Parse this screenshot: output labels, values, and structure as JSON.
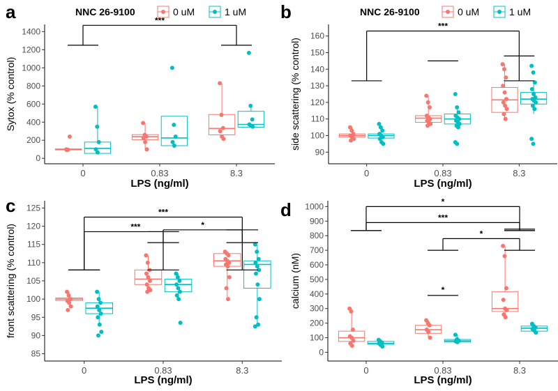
{
  "colors": {
    "control": "#F8766D",
    "treated": "#00BFC4",
    "axis": "#000000",
    "tick_text": "#4d4d4d"
  },
  "legends": [
    {
      "title": "NNC 26-9100",
      "items": [
        "0 uM",
        "1 uM"
      ]
    },
    {
      "title": "NNC 26-9100",
      "items": [
        "0 uM",
        "1 uM"
      ]
    }
  ],
  "chart_data": [
    {
      "panel": "a",
      "type": "box",
      "xlabel": "LPS (ng/ml)",
      "ylabel": "Sytox (% control)",
      "categories": [
        "0",
        "0.83",
        "8.3"
      ],
      "ylim": [
        -60,
        1480
      ],
      "yticks": [
        0,
        200,
        400,
        600,
        800,
        1000,
        1200,
        1400
      ],
      "series": [
        {
          "name": "0 uM",
          "boxes": [
            {
              "q1": 93,
              "med": 100,
              "q3": 104,
              "lo": 90,
              "hi": 110
            },
            {
              "q1": 205,
              "med": 240,
              "q3": 262,
              "lo": 100,
              "hi": 390
            },
            {
              "q1": 260,
              "med": 330,
              "q3": 485,
              "lo": 210,
              "hi": 830
            }
          ],
          "points": [
            [
              100,
              95,
              240,
              92
            ],
            [
              390,
              260,
              240,
              225,
              180,
              100
            ],
            [
              830,
              480,
              335,
              300,
              240,
              215
            ]
          ]
        },
        {
          "name": "1 uM",
          "boxes": [
            {
              "q1": 55,
              "med": 110,
              "q3": 180,
              "lo": 45,
              "hi": 570
            },
            {
              "q1": 140,
              "med": 225,
              "q3": 465,
              "lo": 140,
              "hi": 465
            },
            {
              "q1": 345,
              "med": 375,
              "q3": 520,
              "lo": 345,
              "hi": 570
            }
          ],
          "points": [
            [
              570,
              350,
              180,
              100,
              65
            ],
            [
              1000,
              370,
              240,
              180,
              140
            ],
            [
              1165,
              580,
              430,
              375,
              360,
              350
            ]
          ]
        }
      ],
      "annotations": [
        {
          "label": "***",
          "style": "bridge",
          "x1": 0.8,
          "x2": 1.2,
          "x3": 2.8,
          "x4": 3.2,
          "y_low": 1250,
          "y_high": 1470,
          "label_pos": "top"
        }
      ]
    },
    {
      "panel": "b",
      "type": "box",
      "xlabel": "LPS (ng/ml)",
      "ylabel": "side scattering (% control)",
      "categories": [
        "0",
        "0.83",
        "8.3"
      ],
      "ylim": [
        83,
        167
      ],
      "yticks": [
        90,
        100,
        110,
        120,
        130,
        140,
        150,
        160
      ],
      "series": [
        {
          "name": "0 uM",
          "boxes": [
            {
              "q1": 99,
              "med": 100,
              "q3": 101,
              "lo": 97,
              "hi": 105
            },
            {
              "q1": 108,
              "med": 110.5,
              "q3": 112,
              "lo": 106,
              "hi": 124
            },
            {
              "q1": 114,
              "med": 121.5,
              "q3": 129,
              "lo": 110,
              "hi": 143
            }
          ],
          "points": [
            [
              105,
              103,
              101,
              100,
              99,
              98,
              97
            ],
            [
              124,
              120,
              117,
              112,
              111,
              110,
              109,
              108,
              107,
              106
            ],
            [
              143,
              140,
              135,
              130,
              126,
              122,
              120,
              118,
              116,
              113,
              110
            ]
          ]
        },
        {
          "name": "1 uM",
          "boxes": [
            {
              "q1": 98.5,
              "med": 100,
              "q3": 101,
              "lo": 96,
              "hi": 104
            },
            {
              "q1": 107,
              "med": 110,
              "q3": 113,
              "lo": 104,
              "hi": 117
            },
            {
              "q1": 119,
              "med": 122,
              "q3": 126,
              "lo": 113,
              "hi": 132
            }
          ],
          "points": [
            [
              107,
              105,
              103,
              101,
              100,
              99,
              98,
              96,
              95
            ],
            [
              125,
              117,
              114,
              112,
              111,
              110,
              109,
              108,
              107,
              106,
              105,
              96,
              95
            ],
            [
              142,
              138,
              132,
              128,
              125,
              123,
              122,
              121,
              120,
              118,
              116,
              98,
              95
            ]
          ]
        }
      ],
      "annotations": [
        {
          "label": "***",
          "style": "bridge",
          "x1": 0.8,
          "x2": 1.2,
          "x3": 2.8,
          "x4": 3.2,
          "y_low": 133,
          "y_high": 163,
          "label_pos": "top"
        },
        {
          "label": "",
          "style": "bracket",
          "x1": 1.8,
          "x2": 2.2,
          "y": 145,
          "arm": 0
        },
        {
          "label": "",
          "style": "bracket",
          "x1": 2.8,
          "x2": 3.2,
          "y": 148,
          "arm": 0
        }
      ]
    },
    {
      "panel": "c",
      "type": "box",
      "xlabel": "LPS (ng/ml)",
      "ylabel": "front scattering (% control)",
      "categories": [
        "0",
        "0.83",
        "8.3"
      ],
      "ylim": [
        83,
        127
      ],
      "yticks": [
        85,
        90,
        95,
        100,
        105,
        110,
        115,
        120,
        125
      ],
      "series": [
        {
          "name": "0 uM",
          "boxes": [
            {
              "q1": 99.6,
              "med": 100,
              "q3": 100.3,
              "lo": 98,
              "hi": 102
            },
            {
              "q1": 104,
              "med": 105.5,
              "q3": 108,
              "lo": 102,
              "hi": 112
            },
            {
              "q1": 109,
              "med": 110.5,
              "q3": 112.5,
              "lo": 100,
              "hi": 113
            }
          ],
          "points": [
            [
              102,
              101,
              100,
              99.5,
              99,
              98,
              97
            ],
            [
              112,
              110,
              108,
              107,
              106,
              105,
              104,
              103,
              102.5,
              102
            ],
            [
              113,
              112.5,
              112,
              111,
              110.5,
              110,
              109.5,
              109,
              106,
              103,
              100
            ]
          ]
        },
        {
          "name": "1 uM",
          "boxes": [
            {
              "q1": 96,
              "med": 97.5,
              "q3": 99,
              "lo": 93,
              "hi": 102
            },
            {
              "q1": 102,
              "med": 104,
              "q3": 105.5,
              "lo": 100,
              "hi": 107
            },
            {
              "q1": 103,
              "med": 109.5,
              "q3": 110.5,
              "lo": 93,
              "hi": 115
            }
          ],
          "points": [
            [
              102,
              100,
              99,
              98,
              97,
              96,
              95,
              93,
              91,
              90
            ],
            [
              107,
              106,
              105,
              104,
              103,
              102,
              101,
              100,
              93.5
            ],
            [
              115,
              113,
              111,
              110,
              109,
              108,
              107,
              104,
              100,
              95,
              93,
              92.5
            ]
          ]
        }
      ],
      "annotations": [
        {
          "label": "***",
          "style": "bridge",
          "x1": 0.8,
          "x2": 1.2,
          "x3": 2.8,
          "x4": 3.2,
          "y_low": 108,
          "y_high": 122.5,
          "label_pos": "top"
        },
        {
          "label": "***",
          "style": "bridge",
          "x1": 0.8,
          "x2": 1.2,
          "x3": 1.8,
          "x4": 2.2,
          "y_low": 108,
          "y_high": 118.5,
          "label_pos": "top",
          "label_at": 1.65
        },
        {
          "label": "*",
          "style": "bridge",
          "x1": 1.8,
          "x2": 2.2,
          "x3": 2.8,
          "x4": 3.2,
          "y_low": 115.5,
          "y_high": 119,
          "label_pos": "top"
        },
        {
          "label": "",
          "style": "bracket",
          "x1": 1.8,
          "x2": 2.2,
          "y": 118.5,
          "arm": 0
        },
        {
          "label": "",
          "style": "bracket",
          "x1": 2.8,
          "x2": 3.2,
          "y": 119,
          "arm": 0
        }
      ]
    },
    {
      "panel": "d",
      "type": "box",
      "xlabel": "LPS (ng/ml)",
      "ylabel": "calcium (nM)",
      "categories": [
        "0",
        "0.83",
        "8.3"
      ],
      "ylim": [
        -60,
        1040
      ],
      "yticks": [
        0,
        100,
        200,
        300,
        400,
        500,
        600,
        700,
        800,
        900,
        1000
      ],
      "series": [
        {
          "name": "0 uM",
          "boxes": [
            {
              "q1": 75,
              "med": 100,
              "q3": 145,
              "lo": 40,
              "hi": 300
            },
            {
              "q1": 130,
              "med": 155,
              "q3": 185,
              "lo": 100,
              "hi": 220
            },
            {
              "q1": 280,
              "med": 300,
              "q3": 415,
              "lo": 235,
              "hi": 730
            }
          ],
          "points": [
            [
              300,
              280,
              155,
              110,
              100,
              80,
              60,
              45
            ],
            [
              220,
              200,
              185,
              155,
              140,
              100
            ],
            [
              730,
              660,
              440,
              360,
              300,
              290,
              260,
              240
            ]
          ]
        },
        {
          "name": "1 uM",
          "boxes": [
            {
              "q1": 55,
              "med": 62,
              "q3": 75,
              "lo": 35,
              "hi": 85
            },
            {
              "q1": 70,
              "med": 78,
              "q3": 88,
              "lo": 65,
              "hi": 120
            },
            {
              "q1": 145,
              "med": 165,
              "q3": 180,
              "lo": 130,
              "hi": 195
            }
          ],
          "points": [
            [
              85,
              75,
              65,
              60,
              50,
              40
            ],
            [
              120,
              90,
              80,
              75,
              70
            ],
            [
              195,
              180,
              170,
              160,
              150,
              135
            ]
          ]
        }
      ],
      "annotations": [
        {
          "label": "*",
          "style": "bridge",
          "x1": 0.8,
          "x2": 1.2,
          "x3": 2.8,
          "x4": 3.2,
          "y_low": 835,
          "y_high": 1000,
          "label_pos": "top"
        },
        {
          "label": "***",
          "style": "bridge",
          "x1": 0.8,
          "x2": 1.2,
          "x3": 2.8,
          "x4": 3.2,
          "y_low": 835,
          "y_high": 890,
          "label_pos": "top"
        },
        {
          "label": "*",
          "style": "bridge",
          "x1": 1.8,
          "x2": 2.2,
          "x3": 2.8,
          "x4": 3.2,
          "y_low": 700,
          "y_high": 780,
          "label_pos": "top",
          "label_size": 16
        },
        {
          "label": "",
          "style": "bracket",
          "x1": 2.8,
          "x2": 3.2,
          "y": 845,
          "arm": 0
        },
        {
          "label": "*",
          "style": "bracket",
          "x1": 1.8,
          "x2": 2.2,
          "y": 390,
          "arm": 0
        }
      ]
    }
  ]
}
